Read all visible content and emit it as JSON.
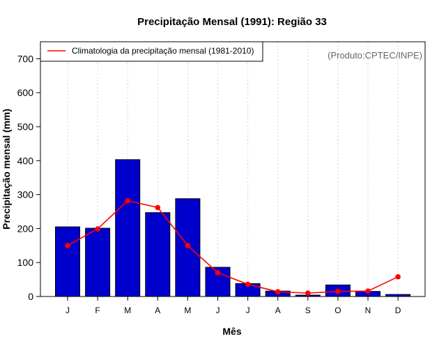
{
  "chart_data": {
    "type": "bar",
    "title": "Precipitação Mensal (1991): Região 33",
    "xlabel": "Mês",
    "ylabel": "Precipitação mensal (mm)",
    "ylim": [
      0,
      750
    ],
    "yticks": [
      0,
      100,
      200,
      300,
      400,
      500,
      600,
      700
    ],
    "grid": "vertical dotted",
    "categories": [
      "J",
      "F",
      "M",
      "A",
      "M",
      "J",
      "J",
      "A",
      "S",
      "O",
      "N",
      "D"
    ],
    "series": [
      {
        "name": "Precipitação mensal (1991)",
        "type": "bar",
        "values": [
          205,
          201,
          403,
          247,
          288,
          86,
          38,
          16,
          4,
          34,
          15,
          6
        ]
      },
      {
        "name": "Climatologia da precipitação mensal (1981-2010)",
        "type": "line",
        "values": [
          150,
          199,
          282,
          262,
          150,
          70,
          36,
          14,
          10,
          15,
          16,
          58
        ]
      }
    ],
    "legend": {
      "entry": "Climatologia da precipitação mensal (1981-2010)",
      "placement": "top-left"
    },
    "annotation": "(Produto:CPTEC/INPE)",
    "colors": {
      "bar_fill": "#0000cc",
      "bar_stroke": "#000000",
      "line": "#ff0000",
      "grid": "#d3d3d3",
      "credit_text": "#666666"
    }
  }
}
